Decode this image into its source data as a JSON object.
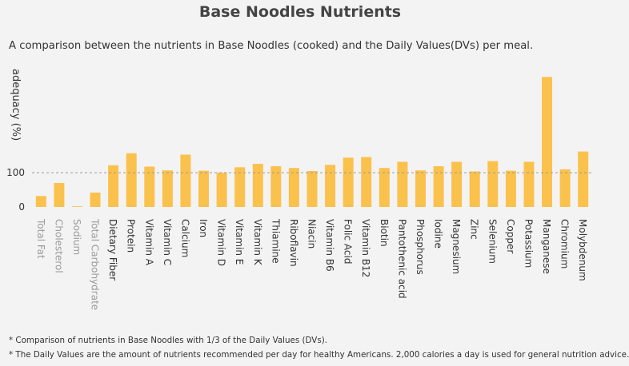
{
  "title": "Base Noodles Nutrients",
  "subtitle": "A comparison between the nutrients in Base Noodles (cooked) and the Daily Values(DVs) per meal.",
  "footnotes": [
    "* Comparison of nutrients in Base Noodles with 1/3 of the Daily Values (DVs).",
    "* The Daily Values are the amount of nutrients recommended per day for healthy Americans. 2,000 calories a day is used for general nutrition advice."
  ],
  "colors": {
    "bar": "#fbc14d",
    "limited_label": "#9a9a9a",
    "label": "#333333",
    "reference_line": "#9a9a9a"
  },
  "chart_data": {
    "type": "bar",
    "title": "Base Noodles Nutrients",
    "ylabel": "adequacy (%)",
    "xlabel": "",
    "yticks": [
      0,
      100
    ],
    "ylim": [
      0,
      390
    ],
    "reference_line": 100,
    "grid": false,
    "categories": [
      "Total Fat",
      "Cholesterol",
      "Sodium",
      "Total Carbohydrate",
      "Dietary Fiber",
      "Protein",
      "Vitamin A",
      "Vitamin C",
      "Calcium",
      "Iron",
      "Vitamin D",
      "Vitamin E",
      "Vitamin K",
      "Thiamine",
      "Riboflavin",
      "Niacin",
      "Vitamin B6",
      "Folic Acid",
      "Vitamin B12",
      "Biotin",
      "Pantothenic acid",
      "Phosphorus",
      "Iodine",
      "Magnesium",
      "Zinc",
      "Selenium",
      "Copper",
      "Potassium",
      "Manganese",
      "Chromium",
      "Molybdenum"
    ],
    "values": [
      32,
      70,
      2,
      42,
      122,
      157,
      118,
      107,
      153,
      106,
      100,
      116,
      126,
      119,
      114,
      105,
      123,
      144,
      146,
      114,
      132,
      107,
      119,
      132,
      104,
      134,
      106,
      132,
      380,
      110,
      162
    ],
    "limited": [
      true,
      true,
      true,
      true,
      false,
      false,
      false,
      false,
      false,
      false,
      false,
      false,
      false,
      false,
      false,
      false,
      false,
      false,
      false,
      false,
      false,
      false,
      false,
      false,
      false,
      false,
      false,
      false,
      false,
      false,
      false
    ]
  }
}
